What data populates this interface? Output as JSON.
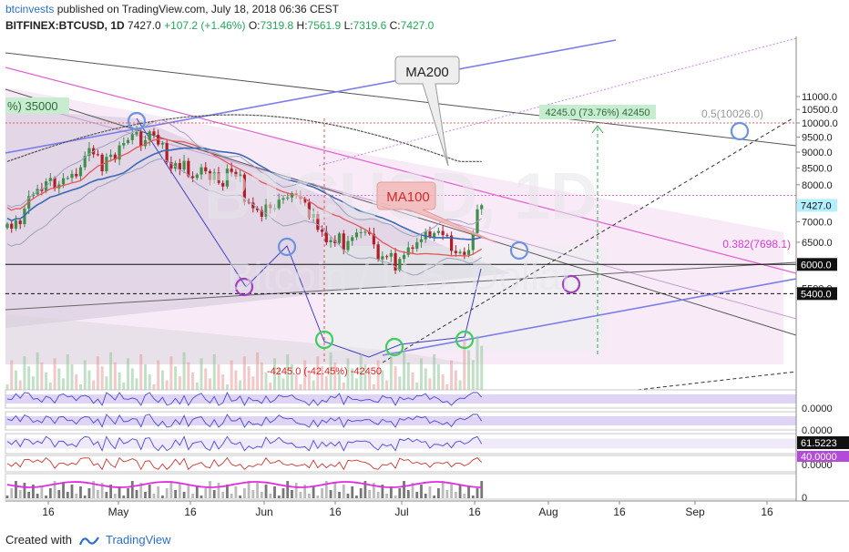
{
  "header": {
    "author": "btcinvests",
    "published_text": "published on TradingView.com, July 18, 2018 06:36 CEST",
    "symbol": "BITFINEX:BTCUSD, 1D",
    "last": "7427.0",
    "change": "+107.2 (+1.46%)",
    "o_label": "O:",
    "o": "7319.8",
    "h_label": "H:",
    "h": "7561.9",
    "l_label": "L:",
    "l": "7319.6",
    "c_label": "C:",
    "c": "7427.0"
  },
  "watermark": {
    "line1": "BTCUSD, 1D",
    "line2": "Bitcoin / U.S. Dollar"
  },
  "footer": {
    "created_with": "Created with",
    "brand": "TradingView"
  },
  "colors": {
    "up": "#3f8f4a",
    "down": "#b01e27",
    "ma100": "#e05a5a",
    "ma200": "#555555",
    "blue_ma": "#3b6ab3",
    "fib_pink": "#cc44cc",
    "channel_blue": "#7b7ee8",
    "circle_green": "#3ccf5c",
    "circle_purple": "#a23fc0",
    "circle_blue": "#6b93e0",
    "price_label_bg": "#b3f0ff"
  },
  "chart_data": {
    "type": "candlestick",
    "symbol": "BITFINEX:BTCUSD",
    "interval": "1D",
    "x_tick_labels": [
      "16",
      "May",
      "16",
      "Jun",
      "16",
      "Jul",
      "16",
      "Aug",
      "16",
      "Sep",
      "16"
    ],
    "y_tick_labels": [
      "11000.0",
      "10500.0",
      "10000.0",
      "9500.0",
      "9000.0",
      "8500.0",
      "8000.0",
      "7500.0",
      "7000.0",
      "6500.0",
      "6000.0",
      "5500.0"
    ],
    "ylim": [
      5300,
      11350
    ],
    "price_axis_scale": "log",
    "close_series": [
      6950,
      6830,
      7030,
      6940,
      7340,
      7680,
      7730,
      7880,
      7820,
      8100,
      8200,
      7900,
      8010,
      8190,
      8200,
      8320,
      8250,
      8520,
      8880,
      9130,
      8930,
      8920,
      8400,
      8850,
      8920,
      8760,
      9220,
      9300,
      9400,
      9600,
      9680,
      9200,
      9400,
      9700,
      9580,
      9250,
      9300,
      8680,
      8480,
      8650,
      8450,
      8720,
      8250,
      8200,
      8300,
      8520,
      8400,
      8140,
      8360,
      8050,
      7950,
      8480,
      8380,
      8240,
      8300,
      7520,
      7500,
      7350,
      7300,
      7130,
      7450,
      7350,
      7350,
      7580,
      7620,
      7640,
      7760,
      7690,
      7600,
      7500,
      7100,
      7200,
      6800,
      6750,
      6500,
      6550,
      6480,
      6710,
      6320,
      6530,
      6620,
      6730,
      6740,
      6750,
      6700,
      6450,
      6110,
      6180,
      6170,
      6250,
      5870,
      6120,
      6210,
      6380,
      6350,
      6500,
      6570,
      6760,
      6620,
      6720,
      6770,
      6670,
      6660,
      6300,
      6250,
      6280,
      6210,
      6320,
      6720,
      7320,
      7430
    ],
    "candles_shown": 111,
    "overlays": [
      {
        "name": "MA100"
      },
      {
        "name": "MA200"
      }
    ],
    "annotations": [
      {
        "text": "MA200",
        "type": "callout"
      },
      {
        "text": "MA100",
        "type": "callout"
      },
      {
        "text": "%) 35000",
        "type": "label"
      },
      {
        "text": "4245.0 (73.76%) 42450",
        "type": "measure"
      },
      {
        "text": "-4245.0 (-42.45%) -42450",
        "type": "measure"
      },
      {
        "text": "0.5(10026.0)",
        "type": "fib",
        "value": 10026.0
      },
      {
        "text": "0.382(7698.1)",
        "type": "fib",
        "value": 7698.1
      }
    ],
    "horizontal_levels": [
      {
        "value": 6000.0,
        "label": "6000.0",
        "style": "solid"
      },
      {
        "value": 5400.0,
        "label": "5400.0",
        "style": "dashed"
      },
      {
        "value": 10000.0,
        "style": "dotted"
      }
    ],
    "current_price": {
      "value": 7427.0,
      "label": "7427.0"
    },
    "sub_panes": [
      {
        "pane": "oscillator-1",
        "y_tick_labels": [
          "0.0000"
        ]
      },
      {
        "pane": "oscillator-2",
        "y_tick_labels": [
          "0.0000"
        ]
      },
      {
        "pane": "rsi",
        "value_labels": [
          "61.5223",
          "40.0000"
        ]
      },
      {
        "pane": "macd",
        "y_tick_labels": [
          "0.0000"
        ]
      },
      {
        "pane": "volume-histogram",
        "y_tick_labels": [
          "0"
        ]
      }
    ]
  }
}
